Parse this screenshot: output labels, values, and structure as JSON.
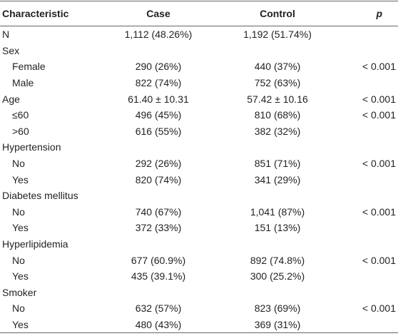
{
  "table": {
    "header": [
      "Characteristic",
      "Case",
      "Control",
      "p"
    ],
    "rows": [
      {
        "label": "N",
        "case": "1,112 (48.26%)",
        "control": "1,192 (51.74%)"
      },
      {
        "label": "Sex",
        "subrows": [
          {
            "label": "Female",
            "case": "290 (26%)",
            "control": "440 (37%)",
            "p": "< 0.001"
          },
          {
            "label": "Male",
            "case": "822 (74%)",
            "control": "752 (63%)"
          }
        ]
      },
      {
        "label": "Age",
        "case": "61.40 ± 10.31",
        "control": "57.42 ± 10.16",
        "p": "< 0.001",
        "subrows": [
          {
            "label": "≤60",
            "case": "496 (45%)",
            "control": "810 (68%)",
            "p": "< 0.001"
          },
          {
            "label": ">60",
            "case": "616 (55%)",
            "control": "382 (32%)"
          }
        ]
      },
      {
        "label": "Hypertension",
        "subrows": [
          {
            "label": "No",
            "case": "292 (26%)",
            "control": "851 (71%)",
            "p": "< 0.001"
          },
          {
            "label": "Yes",
            "case": "820 (74%)",
            "control": "341 (29%)"
          }
        ]
      },
      {
        "label": "Diabetes mellitus",
        "subrows": [
          {
            "label": "No",
            "case": "740 (67%)",
            "control": "1,041 (87%)",
            "p": "< 0.001"
          },
          {
            "label": "Yes",
            "case": "372 (33%)",
            "control": "151 (13%)"
          }
        ]
      },
      {
        "label": "Hyperlipidemia",
        "subrows": [
          {
            "label": "No",
            "case": "677 (60.9%)",
            "control": "892 (74.8%)",
            "p": "< 0.001"
          },
          {
            "label": "Yes",
            "case": "435 (39.1%)",
            "control": "300 (25.2%)"
          }
        ]
      },
      {
        "label": "Smoker",
        "subrows": [
          {
            "label": "No",
            "case": "632 (57%)",
            "control": "823 (69%)",
            "p": "< 0.001"
          },
          {
            "label": "Yes",
            "case": "480 (43%)",
            "control": "369 (31%)"
          }
        ]
      }
    ]
  }
}
